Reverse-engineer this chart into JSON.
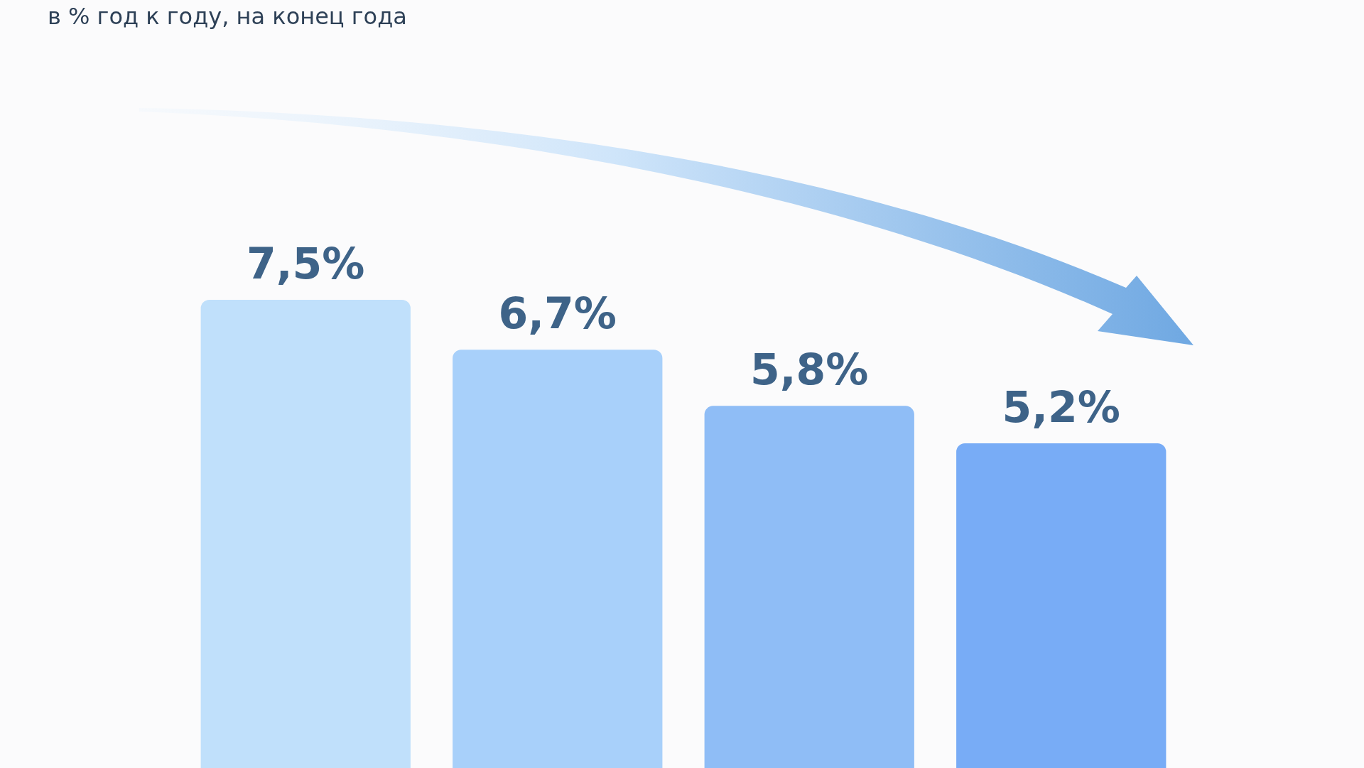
{
  "chart_data": {
    "type": "bar",
    "title": "в % год к году, на конец года",
    "categories": [
      null,
      null,
      null,
      null
    ],
    "values": [
      7.5,
      6.7,
      5.8,
      5.2
    ],
    "colors": [
      "#c0e0fb",
      "#a8d0fa",
      "#8fbdf6",
      "#78acf6"
    ],
    "value_labels": [
      "7,5%",
      "6,7%",
      "5,8%",
      "5,2%"
    ]
  }
}
